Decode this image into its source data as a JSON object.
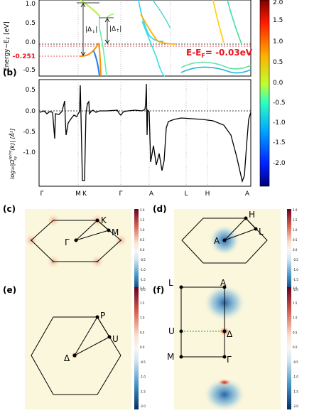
{
  "panel_a": {
    "ylabel": "Energy−E",
    "ylabel_sub": "F",
    "ylabel_unit": " [eV]",
    "yticks": [
      "1.0",
      "0.5",
      "0.0",
      "-0.251",
      "-0.5"
    ],
    "annot_gap": "E-E",
    "annot_sub": "F",
    "annot_val": "= -0.03eV",
    "delta_down": "|Δ",
    "delta_down_sub": "↓",
    "delta_up": "|Δ",
    "delta_up_sub": "↑",
    "pipe": "|"
  },
  "colorbar_a": {
    "ticks": [
      "2.0",
      "1.5",
      "1.0",
      "0.5",
      "0.0",
      "-0.5",
      "-1.0",
      "-1.5",
      "-2.0"
    ]
  },
  "panel_b": {
    "label": "(b)",
    "ylabel": "log₁₀|Ω",
    "ylabel_sup": "spinz",
    "ylabel_sub": "xy",
    "ylabel_tail": "(k)| [Å²]",
    "yticks": [
      "0.5",
      "0.0",
      "-0.5",
      "-1.0"
    ],
    "xticks": [
      "Γ",
      "M",
      "K",
      "Γ",
      "A",
      "L",
      "H",
      "A"
    ]
  },
  "panel_c": {
    "label": "(c)",
    "points": [
      "K",
      "M",
      "Γ"
    ]
  },
  "panel_d": {
    "label": "(d)",
    "points": [
      "H",
      "L",
      "A"
    ]
  },
  "panel_e": {
    "label": "(e)",
    "points": [
      "P",
      "U",
      "Δ"
    ]
  },
  "panel_f": {
    "label": "(f)",
    "points": [
      "L",
      "A",
      "U",
      "Δ",
      "M",
      "Γ"
    ]
  },
  "small_colorbar": {
    "ticks": [
      "2.0",
      "1.5",
      "1.0",
      "0.5",
      "0.0",
      "-0.5",
      "-1.0",
      "-1.5",
      "-2.0"
    ]
  },
  "colors": {
    "annotation_red": "#e8141c",
    "background_map": "#fbf7dc"
  }
}
